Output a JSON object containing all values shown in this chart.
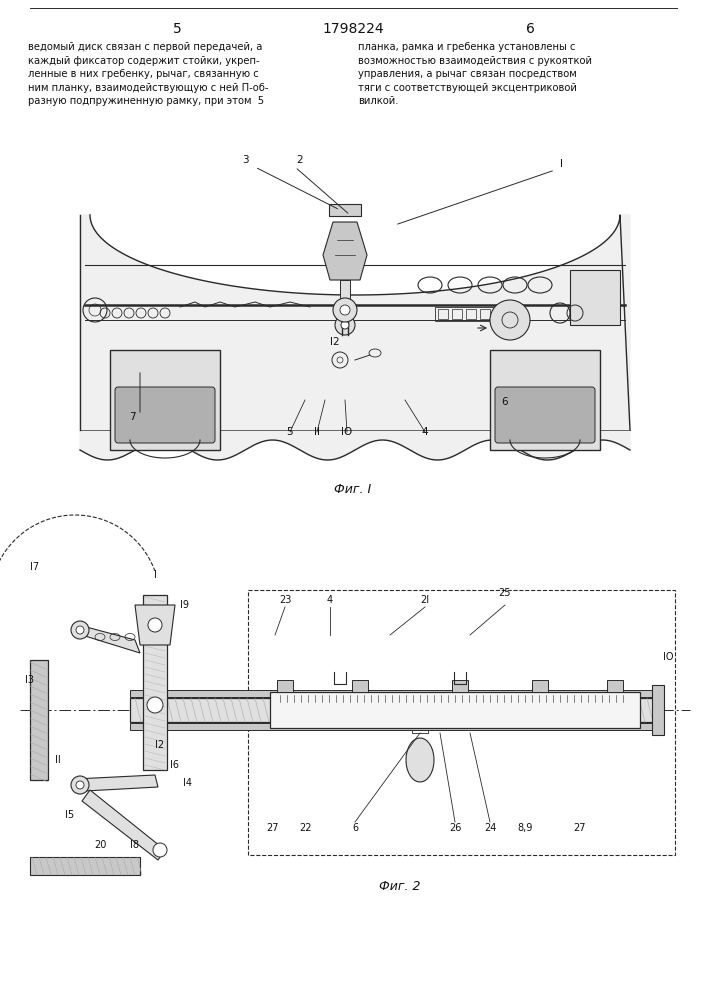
{
  "page_left": "5",
  "page_center": "1798224",
  "page_right": "6",
  "text_left": "ведомый диск связан с первой передачей, а\nкаждый фиксатор содержит стойки, укреп-\nленные в них гребенку, рычаг, связанную с\nним планку, взаимодействующую с ней П-об-\nразную подпружиненную рамку, при этом  5",
  "text_right": "планка, рамка и гребенка установлены с\nвозможностью взаимодействия с рукояткой\nуправления, а рычаг связан посредством\nтяги с соответствующей эксцентриковой\nвилкой.",
  "fig1_caption": "Фиг. I",
  "fig2_caption": "Фиг. 2",
  "bg_color": "#ffffff",
  "line_color": "#2a2a2a",
  "text_color": "#111111"
}
